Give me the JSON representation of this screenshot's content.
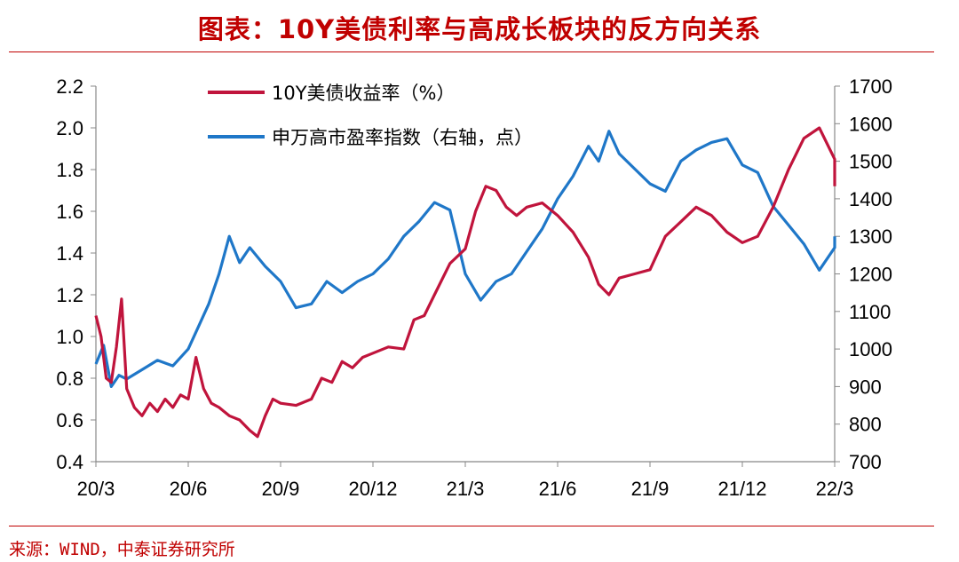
{
  "title": "图表：10Y美债利率与高成长板块的反方向关系",
  "source": "来源：WIND，中泰证券研究所",
  "colors": {
    "title": "#c00000",
    "yield_line": "#c0143c",
    "index_line": "#1f77c8",
    "axis": "#888888"
  },
  "chart_data": {
    "type": "line",
    "x_tick_labels": [
      "20/3",
      "20/6",
      "20/9",
      "20/12",
      "21/3",
      "21/6",
      "21/9",
      "21/12",
      "22/3"
    ],
    "y_left": {
      "ticks": [
        "0.4",
        "0.6",
        "0.8",
        "1.0",
        "1.2",
        "1.4",
        "1.6",
        "1.8",
        "2.0",
        "2.2"
      ],
      "range": [
        0.4,
        2.2
      ]
    },
    "y_right": {
      "ticks": [
        "700",
        "800",
        "900",
        "1000",
        "1100",
        "1200",
        "1300",
        "1400",
        "1500",
        "1600",
        "1700"
      ],
      "range": [
        700,
        1700
      ]
    },
    "legend_position": "top-left",
    "series": [
      {
        "name": "10Y美债收益率（%）",
        "axis": "left",
        "points": [
          [
            "20/3",
            1.1
          ],
          [
            "20/3",
            1.0
          ],
          [
            "20/3",
            0.8
          ],
          [
            "20/3",
            0.78
          ],
          [
            "20/3",
            0.95
          ],
          [
            "20/3",
            1.18
          ],
          [
            "20/4",
            0.75
          ],
          [
            "20/4",
            0.66
          ],
          [
            "20/4",
            0.62
          ],
          [
            "20/4",
            0.68
          ],
          [
            "20/5",
            0.64
          ],
          [
            "20/5",
            0.7
          ],
          [
            "20/5",
            0.66
          ],
          [
            "20/5",
            0.72
          ],
          [
            "20/6",
            0.7
          ],
          [
            "20/6",
            0.9
          ],
          [
            "20/6",
            0.75
          ],
          [
            "20/6",
            0.68
          ],
          [
            "20/7",
            0.66
          ],
          [
            "20/7",
            0.62
          ],
          [
            "20/7",
            0.6
          ],
          [
            "20/8",
            0.55
          ],
          [
            "20/8",
            0.52
          ],
          [
            "20/8",
            0.62
          ],
          [
            "20/8",
            0.7
          ],
          [
            "20/9",
            0.68
          ],
          [
            "20/9",
            0.67
          ],
          [
            "20/10",
            0.7
          ],
          [
            "20/10",
            0.8
          ],
          [
            "20/10",
            0.78
          ],
          [
            "20/11",
            0.88
          ],
          [
            "20/11",
            0.85
          ],
          [
            "20/11",
            0.9
          ],
          [
            "20/12",
            0.92
          ],
          [
            "20/12",
            0.95
          ],
          [
            "21/1",
            0.94
          ],
          [
            "21/1",
            1.08
          ],
          [
            "21/1",
            1.1
          ],
          [
            "21/2",
            1.2
          ],
          [
            "21/2",
            1.35
          ],
          [
            "21/3",
            1.42
          ],
          [
            "21/3",
            1.6
          ],
          [
            "21/3",
            1.72
          ],
          [
            "21/4",
            1.7
          ],
          [
            "21/4",
            1.62
          ],
          [
            "21/4",
            1.58
          ],
          [
            "21/5",
            1.62
          ],
          [
            "21/5",
            1.64
          ],
          [
            "21/6",
            1.58
          ],
          [
            "21/6",
            1.5
          ],
          [
            "21/7",
            1.38
          ],
          [
            "21/7",
            1.25
          ],
          [
            "21/7",
            1.2
          ],
          [
            "21/8",
            1.28
          ],
          [
            "21/8",
            1.3
          ],
          [
            "21/9",
            1.32
          ],
          [
            "21/9",
            1.48
          ],
          [
            "21/10",
            1.55
          ],
          [
            "21/10",
            1.62
          ],
          [
            "21/11",
            1.58
          ],
          [
            "21/11",
            1.5
          ],
          [
            "21/12",
            1.45
          ],
          [
            "21/12",
            1.48
          ],
          [
            "22/1",
            1.62
          ],
          [
            "22/1",
            1.8
          ],
          [
            "22/2",
            1.95
          ],
          [
            "22/2",
            2.0
          ],
          [
            "22/3",
            1.85
          ],
          [
            "22/3",
            1.72
          ]
        ]
      },
      {
        "name": "申万高市盈率指数（右轴，点）",
        "axis": "right",
        "points": [
          [
            "20/3",
            960
          ],
          [
            "20/3",
            1010
          ],
          [
            "20/3",
            900
          ],
          [
            "20/3",
            930
          ],
          [
            "20/4",
            920
          ],
          [
            "20/4",
            945
          ],
          [
            "20/5",
            970
          ],
          [
            "20/5",
            955
          ],
          [
            "20/6",
            1000
          ],
          [
            "20/6",
            1060
          ],
          [
            "20/6",
            1120
          ],
          [
            "20/7",
            1200
          ],
          [
            "20/7",
            1300
          ],
          [
            "20/7",
            1230
          ],
          [
            "20/8",
            1270
          ],
          [
            "20/8",
            1220
          ],
          [
            "20/9",
            1180
          ],
          [
            "20/9",
            1110
          ],
          [
            "20/10",
            1120
          ],
          [
            "20/10",
            1180
          ],
          [
            "20/11",
            1150
          ],
          [
            "20/11",
            1180
          ],
          [
            "20/12",
            1200
          ],
          [
            "20/12",
            1240
          ],
          [
            "21/1",
            1300
          ],
          [
            "21/1",
            1340
          ],
          [
            "21/2",
            1390
          ],
          [
            "21/2",
            1370
          ],
          [
            "21/3",
            1200
          ],
          [
            "21/3",
            1130
          ],
          [
            "21/4",
            1180
          ],
          [
            "21/4",
            1200
          ],
          [
            "21/5",
            1260
          ],
          [
            "21/5",
            1320
          ],
          [
            "21/6",
            1400
          ],
          [
            "21/6",
            1460
          ],
          [
            "21/7",
            1540
          ],
          [
            "21/7",
            1500
          ],
          [
            "21/7",
            1580
          ],
          [
            "21/8",
            1520
          ],
          [
            "21/8",
            1480
          ],
          [
            "21/9",
            1440
          ],
          [
            "21/9",
            1420
          ],
          [
            "21/10",
            1500
          ],
          [
            "21/10",
            1530
          ],
          [
            "21/11",
            1550
          ],
          [
            "21/11",
            1560
          ],
          [
            "21/12",
            1490
          ],
          [
            "21/12",
            1470
          ],
          [
            "22/1",
            1380
          ],
          [
            "22/1",
            1330
          ],
          [
            "22/2",
            1280
          ],
          [
            "22/2",
            1210
          ],
          [
            "22/3",
            1270
          ],
          [
            "22/3",
            1300
          ]
        ]
      }
    ]
  }
}
